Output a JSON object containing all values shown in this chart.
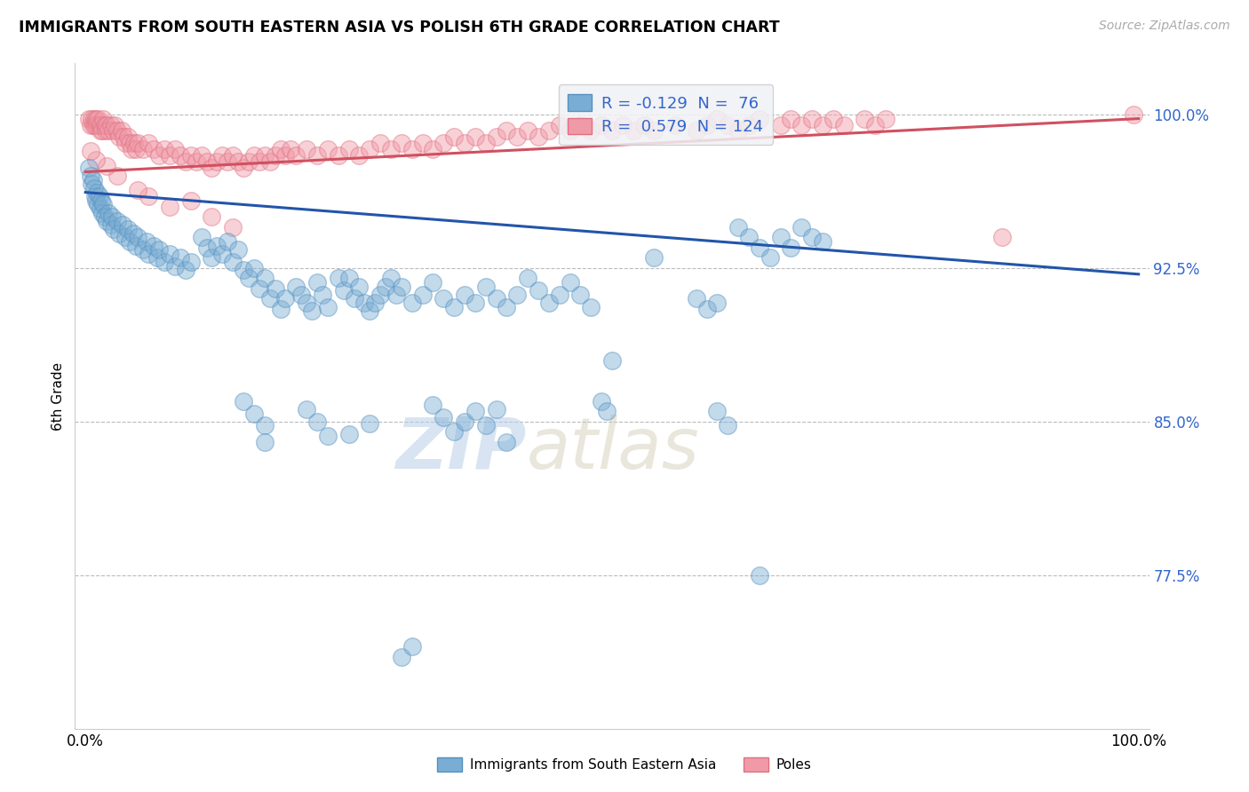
{
  "title": "IMMIGRANTS FROM SOUTH EASTERN ASIA VS POLISH 6TH GRADE CORRELATION CHART",
  "source_text": "Source: ZipAtlas.com",
  "ylabel": "6th Grade",
  "ylim": [
    0.7,
    1.025
  ],
  "xlim": [
    -0.01,
    1.01
  ],
  "ytick_vals": [
    0.775,
    0.85,
    0.925,
    1.0
  ],
  "ytick_labels": [
    "77.5%",
    "85.0%",
    "92.5%",
    "100.0%"
  ],
  "xtick_vals": [
    0.0,
    1.0
  ],
  "xtick_labels": [
    "0.0%",
    "100.0%"
  ],
  "blue_color": "#7aadd4",
  "blue_edge_color": "#5590c0",
  "pink_color": "#f09aa8",
  "pink_edge_color": "#e07080",
  "blue_line_color": "#2255aa",
  "pink_line_color": "#d05060",
  "watermark_zip": "ZIP",
  "watermark_atlas": "atlas",
  "watermark_color": "#c5d8ee",
  "blue_trend_x": [
    0.0,
    1.0
  ],
  "blue_trend_y": [
    0.962,
    0.922
  ],
  "pink_trend_x": [
    0.0,
    1.0
  ],
  "pink_trend_y": [
    0.972,
    0.998
  ],
  "blue_points": [
    [
      0.003,
      0.974
    ],
    [
      0.005,
      0.97
    ],
    [
      0.006,
      0.966
    ],
    [
      0.007,
      0.968
    ],
    [
      0.008,
      0.964
    ],
    [
      0.009,
      0.96
    ],
    [
      0.01,
      0.958
    ],
    [
      0.011,
      0.962
    ],
    [
      0.012,
      0.956
    ],
    [
      0.013,
      0.96
    ],
    [
      0.014,
      0.954
    ],
    [
      0.015,
      0.958
    ],
    [
      0.016,
      0.952
    ],
    [
      0.017,
      0.956
    ],
    [
      0.018,
      0.95
    ],
    [
      0.02,
      0.948
    ],
    [
      0.022,
      0.952
    ],
    [
      0.024,
      0.946
    ],
    [
      0.025,
      0.95
    ],
    [
      0.027,
      0.944
    ],
    [
      0.03,
      0.948
    ],
    [
      0.032,
      0.942
    ],
    [
      0.035,
      0.946
    ],
    [
      0.038,
      0.94
    ],
    [
      0.04,
      0.944
    ],
    [
      0.042,
      0.938
    ],
    [
      0.045,
      0.942
    ],
    [
      0.048,
      0.936
    ],
    [
      0.05,
      0.94
    ],
    [
      0.055,
      0.934
    ],
    [
      0.058,
      0.938
    ],
    [
      0.06,
      0.932
    ],
    [
      0.065,
      0.936
    ],
    [
      0.068,
      0.93
    ],
    [
      0.07,
      0.934
    ],
    [
      0.075,
      0.928
    ],
    [
      0.08,
      0.932
    ],
    [
      0.085,
      0.926
    ],
    [
      0.09,
      0.93
    ],
    [
      0.095,
      0.924
    ],
    [
      0.1,
      0.928
    ],
    [
      0.11,
      0.94
    ],
    [
      0.115,
      0.935
    ],
    [
      0.12,
      0.93
    ],
    [
      0.125,
      0.936
    ],
    [
      0.13,
      0.932
    ],
    [
      0.135,
      0.938
    ],
    [
      0.14,
      0.928
    ],
    [
      0.145,
      0.934
    ],
    [
      0.15,
      0.924
    ],
    [
      0.155,
      0.92
    ],
    [
      0.16,
      0.925
    ],
    [
      0.165,
      0.915
    ],
    [
      0.17,
      0.92
    ],
    [
      0.175,
      0.91
    ],
    [
      0.18,
      0.915
    ],
    [
      0.185,
      0.905
    ],
    [
      0.19,
      0.91
    ],
    [
      0.2,
      0.916
    ],
    [
      0.205,
      0.912
    ],
    [
      0.21,
      0.908
    ],
    [
      0.215,
      0.904
    ],
    [
      0.22,
      0.918
    ],
    [
      0.225,
      0.912
    ],
    [
      0.23,
      0.906
    ],
    [
      0.24,
      0.92
    ],
    [
      0.245,
      0.914
    ],
    [
      0.25,
      0.92
    ],
    [
      0.255,
      0.91
    ],
    [
      0.26,
      0.916
    ],
    [
      0.265,
      0.908
    ],
    [
      0.27,
      0.904
    ],
    [
      0.275,
      0.908
    ],
    [
      0.28,
      0.912
    ],
    [
      0.285,
      0.916
    ],
    [
      0.29,
      0.92
    ],
    [
      0.295,
      0.912
    ],
    [
      0.3,
      0.916
    ],
    [
      0.31,
      0.908
    ],
    [
      0.32,
      0.912
    ],
    [
      0.33,
      0.918
    ],
    [
      0.34,
      0.91
    ],
    [
      0.35,
      0.906
    ],
    [
      0.36,
      0.912
    ],
    [
      0.37,
      0.908
    ],
    [
      0.38,
      0.916
    ],
    [
      0.39,
      0.91
    ],
    [
      0.4,
      0.906
    ],
    [
      0.41,
      0.912
    ],
    [
      0.42,
      0.92
    ],
    [
      0.43,
      0.914
    ],
    [
      0.44,
      0.908
    ],
    [
      0.45,
      0.912
    ],
    [
      0.46,
      0.918
    ],
    [
      0.47,
      0.912
    ],
    [
      0.48,
      0.906
    ],
    [
      0.49,
      0.86
    ],
    [
      0.495,
      0.855
    ],
    [
      0.5,
      0.88
    ],
    [
      0.54,
      0.93
    ],
    [
      0.58,
      0.91
    ],
    [
      0.59,
      0.905
    ],
    [
      0.6,
      0.908
    ],
    [
      0.62,
      0.945
    ],
    [
      0.63,
      0.94
    ],
    [
      0.64,
      0.935
    ],
    [
      0.65,
      0.93
    ],
    [
      0.66,
      0.94
    ],
    [
      0.67,
      0.935
    ],
    [
      0.68,
      0.945
    ],
    [
      0.69,
      0.94
    ],
    [
      0.7,
      0.938
    ],
    [
      0.6,
      0.855
    ],
    [
      0.61,
      0.848
    ],
    [
      0.22,
      0.85
    ],
    [
      0.23,
      0.843
    ],
    [
      0.15,
      0.86
    ],
    [
      0.16,
      0.854
    ],
    [
      0.17,
      0.848
    ],
    [
      0.21,
      0.856
    ],
    [
      0.17,
      0.84
    ],
    [
      0.33,
      0.858
    ],
    [
      0.34,
      0.852
    ],
    [
      0.35,
      0.845
    ],
    [
      0.36,
      0.85
    ],
    [
      0.37,
      0.855
    ],
    [
      0.38,
      0.848
    ],
    [
      0.39,
      0.856
    ],
    [
      0.4,
      0.84
    ],
    [
      0.25,
      0.844
    ],
    [
      0.27,
      0.849
    ],
    [
      0.64,
      0.775
    ],
    [
      0.3,
      0.735
    ],
    [
      0.31,
      0.74
    ]
  ],
  "pink_points": [
    [
      0.003,
      0.998
    ],
    [
      0.005,
      0.995
    ],
    [
      0.006,
      0.998
    ],
    [
      0.007,
      0.995
    ],
    [
      0.008,
      0.998
    ],
    [
      0.009,
      0.995
    ],
    [
      0.01,
      0.998
    ],
    [
      0.011,
      0.995
    ],
    [
      0.012,
      0.998
    ],
    [
      0.013,
      0.995
    ],
    [
      0.014,
      0.992
    ],
    [
      0.015,
      0.995
    ],
    [
      0.016,
      0.992
    ],
    [
      0.017,
      0.998
    ],
    [
      0.018,
      0.995
    ],
    [
      0.019,
      0.992
    ],
    [
      0.02,
      0.995
    ],
    [
      0.022,
      0.992
    ],
    [
      0.024,
      0.995
    ],
    [
      0.026,
      0.992
    ],
    [
      0.028,
      0.995
    ],
    [
      0.03,
      0.992
    ],
    [
      0.032,
      0.989
    ],
    [
      0.034,
      0.992
    ],
    [
      0.036,
      0.989
    ],
    [
      0.038,
      0.986
    ],
    [
      0.04,
      0.989
    ],
    [
      0.042,
      0.986
    ],
    [
      0.044,
      0.983
    ],
    [
      0.046,
      0.986
    ],
    [
      0.048,
      0.983
    ],
    [
      0.05,
      0.986
    ],
    [
      0.055,
      0.983
    ],
    [
      0.06,
      0.986
    ],
    [
      0.065,
      0.983
    ],
    [
      0.07,
      0.98
    ],
    [
      0.075,
      0.983
    ],
    [
      0.08,
      0.98
    ],
    [
      0.085,
      0.983
    ],
    [
      0.09,
      0.98
    ],
    [
      0.095,
      0.977
    ],
    [
      0.1,
      0.98
    ],
    [
      0.105,
      0.977
    ],
    [
      0.11,
      0.98
    ],
    [
      0.115,
      0.977
    ],
    [
      0.12,
      0.974
    ],
    [
      0.125,
      0.977
    ],
    [
      0.13,
      0.98
    ],
    [
      0.135,
      0.977
    ],
    [
      0.14,
      0.98
    ],
    [
      0.145,
      0.977
    ],
    [
      0.15,
      0.974
    ],
    [
      0.155,
      0.977
    ],
    [
      0.16,
      0.98
    ],
    [
      0.165,
      0.977
    ],
    [
      0.17,
      0.98
    ],
    [
      0.175,
      0.977
    ],
    [
      0.18,
      0.98
    ],
    [
      0.185,
      0.983
    ],
    [
      0.19,
      0.98
    ],
    [
      0.195,
      0.983
    ],
    [
      0.2,
      0.98
    ],
    [
      0.21,
      0.983
    ],
    [
      0.22,
      0.98
    ],
    [
      0.23,
      0.983
    ],
    [
      0.24,
      0.98
    ],
    [
      0.25,
      0.983
    ],
    [
      0.26,
      0.98
    ],
    [
      0.27,
      0.983
    ],
    [
      0.28,
      0.986
    ],
    [
      0.29,
      0.983
    ],
    [
      0.3,
      0.986
    ],
    [
      0.31,
      0.983
    ],
    [
      0.32,
      0.986
    ],
    [
      0.33,
      0.983
    ],
    [
      0.34,
      0.986
    ],
    [
      0.35,
      0.989
    ],
    [
      0.36,
      0.986
    ],
    [
      0.37,
      0.989
    ],
    [
      0.38,
      0.986
    ],
    [
      0.39,
      0.989
    ],
    [
      0.4,
      0.992
    ],
    [
      0.41,
      0.989
    ],
    [
      0.42,
      0.992
    ],
    [
      0.43,
      0.989
    ],
    [
      0.44,
      0.992
    ],
    [
      0.45,
      0.995
    ],
    [
      0.46,
      0.992
    ],
    [
      0.47,
      0.995
    ],
    [
      0.48,
      0.992
    ],
    [
      0.49,
      0.995
    ],
    [
      0.5,
      0.992
    ],
    [
      0.51,
      0.995
    ],
    [
      0.52,
      0.992
    ],
    [
      0.53,
      0.995
    ],
    [
      0.54,
      0.992
    ],
    [
      0.56,
      0.995
    ],
    [
      0.58,
      0.992
    ],
    [
      0.59,
      0.995
    ],
    [
      0.6,
      0.998
    ],
    [
      0.61,
      0.995
    ],
    [
      0.62,
      0.992
    ],
    [
      0.63,
      0.995
    ],
    [
      0.64,
      0.998
    ],
    [
      0.66,
      0.995
    ],
    [
      0.67,
      0.998
    ],
    [
      0.68,
      0.995
    ],
    [
      0.69,
      0.998
    ],
    [
      0.7,
      0.995
    ],
    [
      0.71,
      0.998
    ],
    [
      0.72,
      0.995
    ],
    [
      0.74,
      0.998
    ],
    [
      0.75,
      0.995
    ],
    [
      0.76,
      0.998
    ],
    [
      0.995,
      1.0
    ],
    [
      0.12,
      0.95
    ],
    [
      0.14,
      0.945
    ],
    [
      0.08,
      0.955
    ],
    [
      0.06,
      0.96
    ],
    [
      0.1,
      0.958
    ],
    [
      0.05,
      0.963
    ],
    [
      0.03,
      0.97
    ],
    [
      0.02,
      0.975
    ],
    [
      0.01,
      0.978
    ],
    [
      0.005,
      0.982
    ],
    [
      0.87,
      0.94
    ]
  ],
  "legend_box_color": "#f0f2f5",
  "legend_border_color": "#cccccc",
  "legend_text_color": "#3366cc",
  "bottom_legend_labels": [
    "Immigrants from South Eastern Asia",
    "Poles"
  ]
}
